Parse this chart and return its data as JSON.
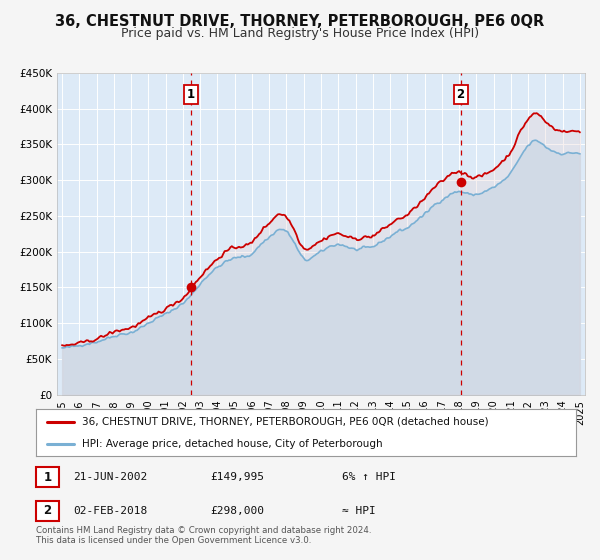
{
  "title": "36, CHESTNUT DRIVE, THORNEY, PETERBOROUGH, PE6 0QR",
  "subtitle": "Price paid vs. HM Land Registry's House Price Index (HPI)",
  "title_fontsize": 10.5,
  "subtitle_fontsize": 9,
  "background_color": "#f5f5f5",
  "plot_bg_color": "#ddeaf7",
  "grid_color": "#ffffff",
  "ylim": [
    0,
    450000
  ],
  "yticks": [
    0,
    50000,
    100000,
    150000,
    200000,
    250000,
    300000,
    350000,
    400000,
    450000
  ],
  "ytick_labels": [
    "£0",
    "£50K",
    "£100K",
    "£150K",
    "£200K",
    "£250K",
    "£300K",
    "£350K",
    "£400K",
    "£450K"
  ],
  "xlim_start": 1994.7,
  "xlim_end": 2025.3,
  "xticks": [
    1995,
    1996,
    1997,
    1998,
    1999,
    2000,
    2001,
    2002,
    2003,
    2004,
    2005,
    2006,
    2007,
    2008,
    2009,
    2010,
    2011,
    2012,
    2013,
    2014,
    2015,
    2016,
    2017,
    2018,
    2019,
    2020,
    2021,
    2022,
    2023,
    2024,
    2025
  ],
  "sale1_x": 2002.47,
  "sale1_y": 149995,
  "sale1_label": "1",
  "sale2_x": 2018.09,
  "sale2_y": 298000,
  "sale2_label": "2",
  "sale_marker_color": "#cc0000",
  "sale_marker_size": 7,
  "line_color_red": "#cc0000",
  "line_color_blue": "#7ab0d4",
  "fill_color_blue": "#c8dff0",
  "vline_color": "#cc0000",
  "legend_line1": "36, CHESTNUT DRIVE, THORNEY, PETERBOROUGH, PE6 0QR (detached house)",
  "legend_line2": "HPI: Average price, detached house, City of Peterborough",
  "table_row1": [
    "1",
    "21-JUN-2002",
    "£149,995",
    "6% ↑ HPI"
  ],
  "table_row2": [
    "2",
    "02-FEB-2018",
    "£298,000",
    "≈ HPI"
  ],
  "footnote1": "Contains HM Land Registry data © Crown copyright and database right 2024.",
  "footnote2": "This data is licensed under the Open Government Licence v3.0."
}
